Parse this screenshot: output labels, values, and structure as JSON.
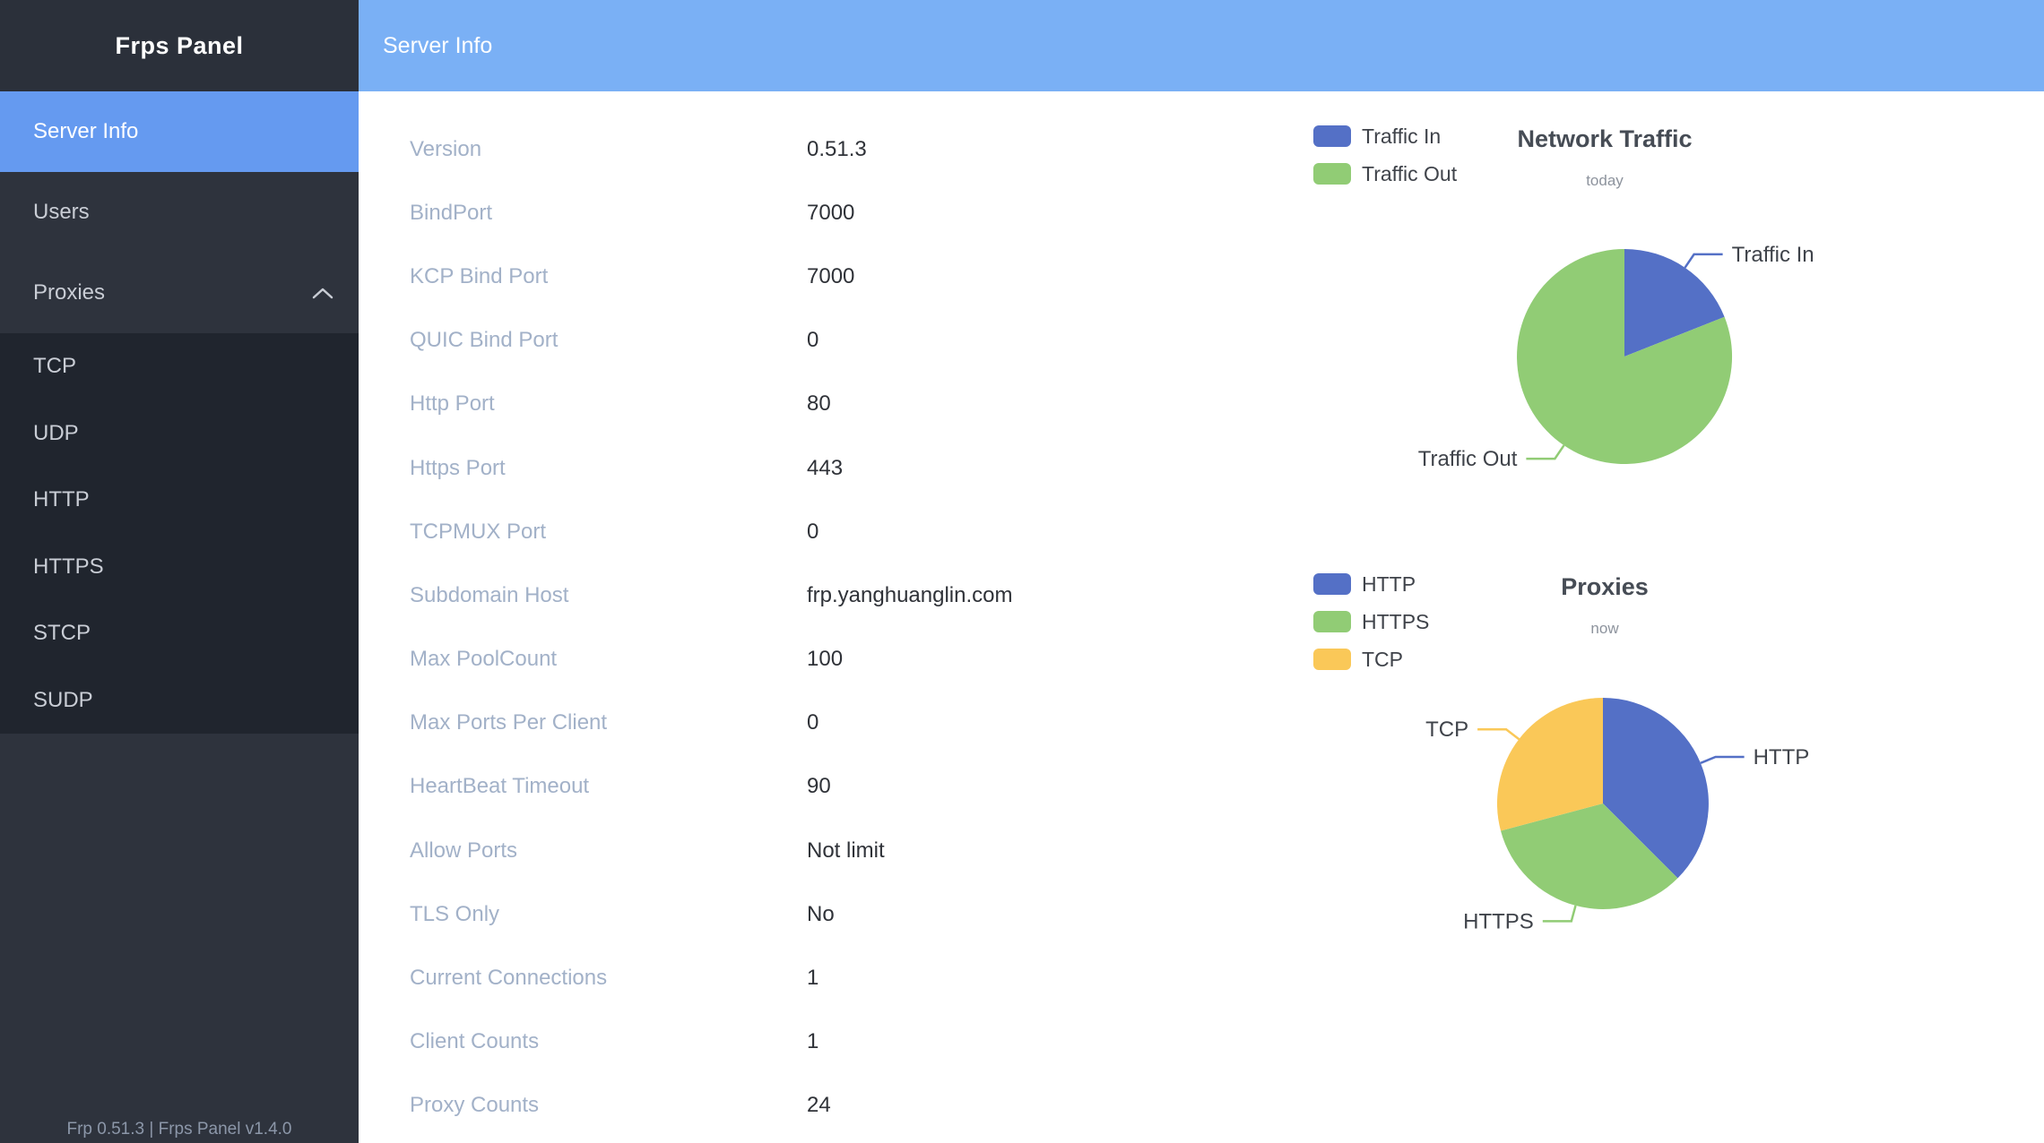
{
  "app": {
    "title": "Frps Panel"
  },
  "header": {
    "title": "Server Info"
  },
  "sidebar": {
    "items": [
      {
        "label": "Server Info",
        "selected": true
      },
      {
        "label": "Users",
        "selected": false
      },
      {
        "label": "Proxies",
        "selected": false,
        "expanded": true
      }
    ],
    "submenu": [
      "TCP",
      "UDP",
      "HTTP",
      "HTTPS",
      "STCP",
      "SUDP"
    ],
    "footer": "Frp 0.51.3 | Frps Panel v1.4.0"
  },
  "server_info": {
    "rows": [
      {
        "label": "Version",
        "value": "0.51.3"
      },
      {
        "label": "BindPort",
        "value": "7000"
      },
      {
        "label": "KCP Bind Port",
        "value": "7000"
      },
      {
        "label": "QUIC Bind Port",
        "value": "0"
      },
      {
        "label": "Http Port",
        "value": "80"
      },
      {
        "label": "Https Port",
        "value": "443"
      },
      {
        "label": "TCPMUX Port",
        "value": "0"
      },
      {
        "label": "Subdomain Host",
        "value": "frp.yanghuanglin.com"
      },
      {
        "label": "Max PoolCount",
        "value": "100"
      },
      {
        "label": "Max Ports Per Client",
        "value": "0"
      },
      {
        "label": "HeartBeat Timeout",
        "value": "90"
      },
      {
        "label": "Allow Ports",
        "value": "Not limit"
      },
      {
        "label": "TLS Only",
        "value": "No"
      },
      {
        "label": "Current Connections",
        "value": "1"
      },
      {
        "label": "Client Counts",
        "value": "1"
      },
      {
        "label": "Proxy Counts",
        "value": "24"
      }
    ]
  },
  "chart_data": [
    {
      "type": "pie",
      "title": "Network Traffic",
      "subtitle": "today",
      "legend_position": "top-left",
      "categories": [
        "Traffic In",
        "Traffic Out"
      ],
      "values": [
        19,
        81
      ],
      "value_note": "percent share estimated from slice angles (~69° / ~291°); numeric byte values not shown",
      "colors": [
        "#5470c6",
        "#91cc75"
      ]
    },
    {
      "type": "pie",
      "title": "Proxies",
      "subtitle": "now",
      "legend_position": "top-left",
      "categories": [
        "HTTP",
        "HTTPS",
        "TCP"
      ],
      "values": [
        9,
        8,
        7
      ],
      "value_note": "counts estimated from slice angles (135°/120°/105°) consistent with Proxy Counts total of 24",
      "colors": [
        "#5470c6",
        "#91cc75",
        "#fac858"
      ]
    }
  ],
  "theme": {
    "sidebar_bg": "#2e333d",
    "submenu_bg": "#20252e",
    "selected_item_bg": "#659af0",
    "header_bg": "#7ab0f5",
    "label_color": "#a2b1c8",
    "value_color": "#2f3238"
  }
}
